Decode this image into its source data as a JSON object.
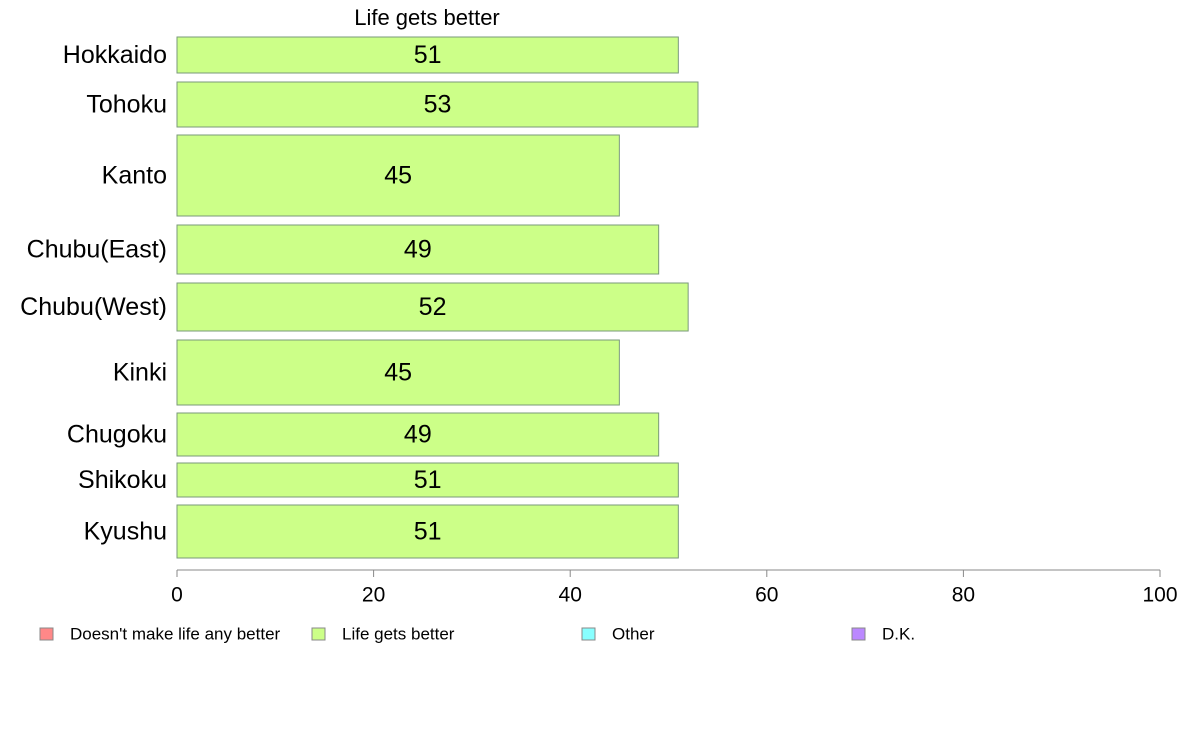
{
  "chart_data": {
    "type": "bar",
    "orientation": "horizontal",
    "title": "Life gets better",
    "categories": [
      "Hokkaido",
      "Tohoku",
      "Kanto",
      "Chubu(East)",
      "Chubu(West)",
      "Kinki",
      "Chugoku",
      "Shikoku",
      "Kyushu"
    ],
    "series": [
      {
        "name": "Life gets better",
        "values": [
          51,
          53,
          45,
          49,
          52,
          45,
          49,
          51,
          51
        ],
        "color": "#ccff88"
      }
    ],
    "xlim": [
      0,
      100
    ],
    "xticks": [
      0,
      20,
      40,
      60,
      80,
      100
    ],
    "grid": false,
    "legend_position": "bottom",
    "legend": [
      {
        "label": "Doesn't make life any better",
        "color": "#ff8888"
      },
      {
        "label": "Life gets better",
        "color": "#ccff88"
      },
      {
        "label": "Other",
        "color": "#88ffff"
      },
      {
        "label": "D.K.",
        "color": "#bb88ff"
      }
    ]
  }
}
